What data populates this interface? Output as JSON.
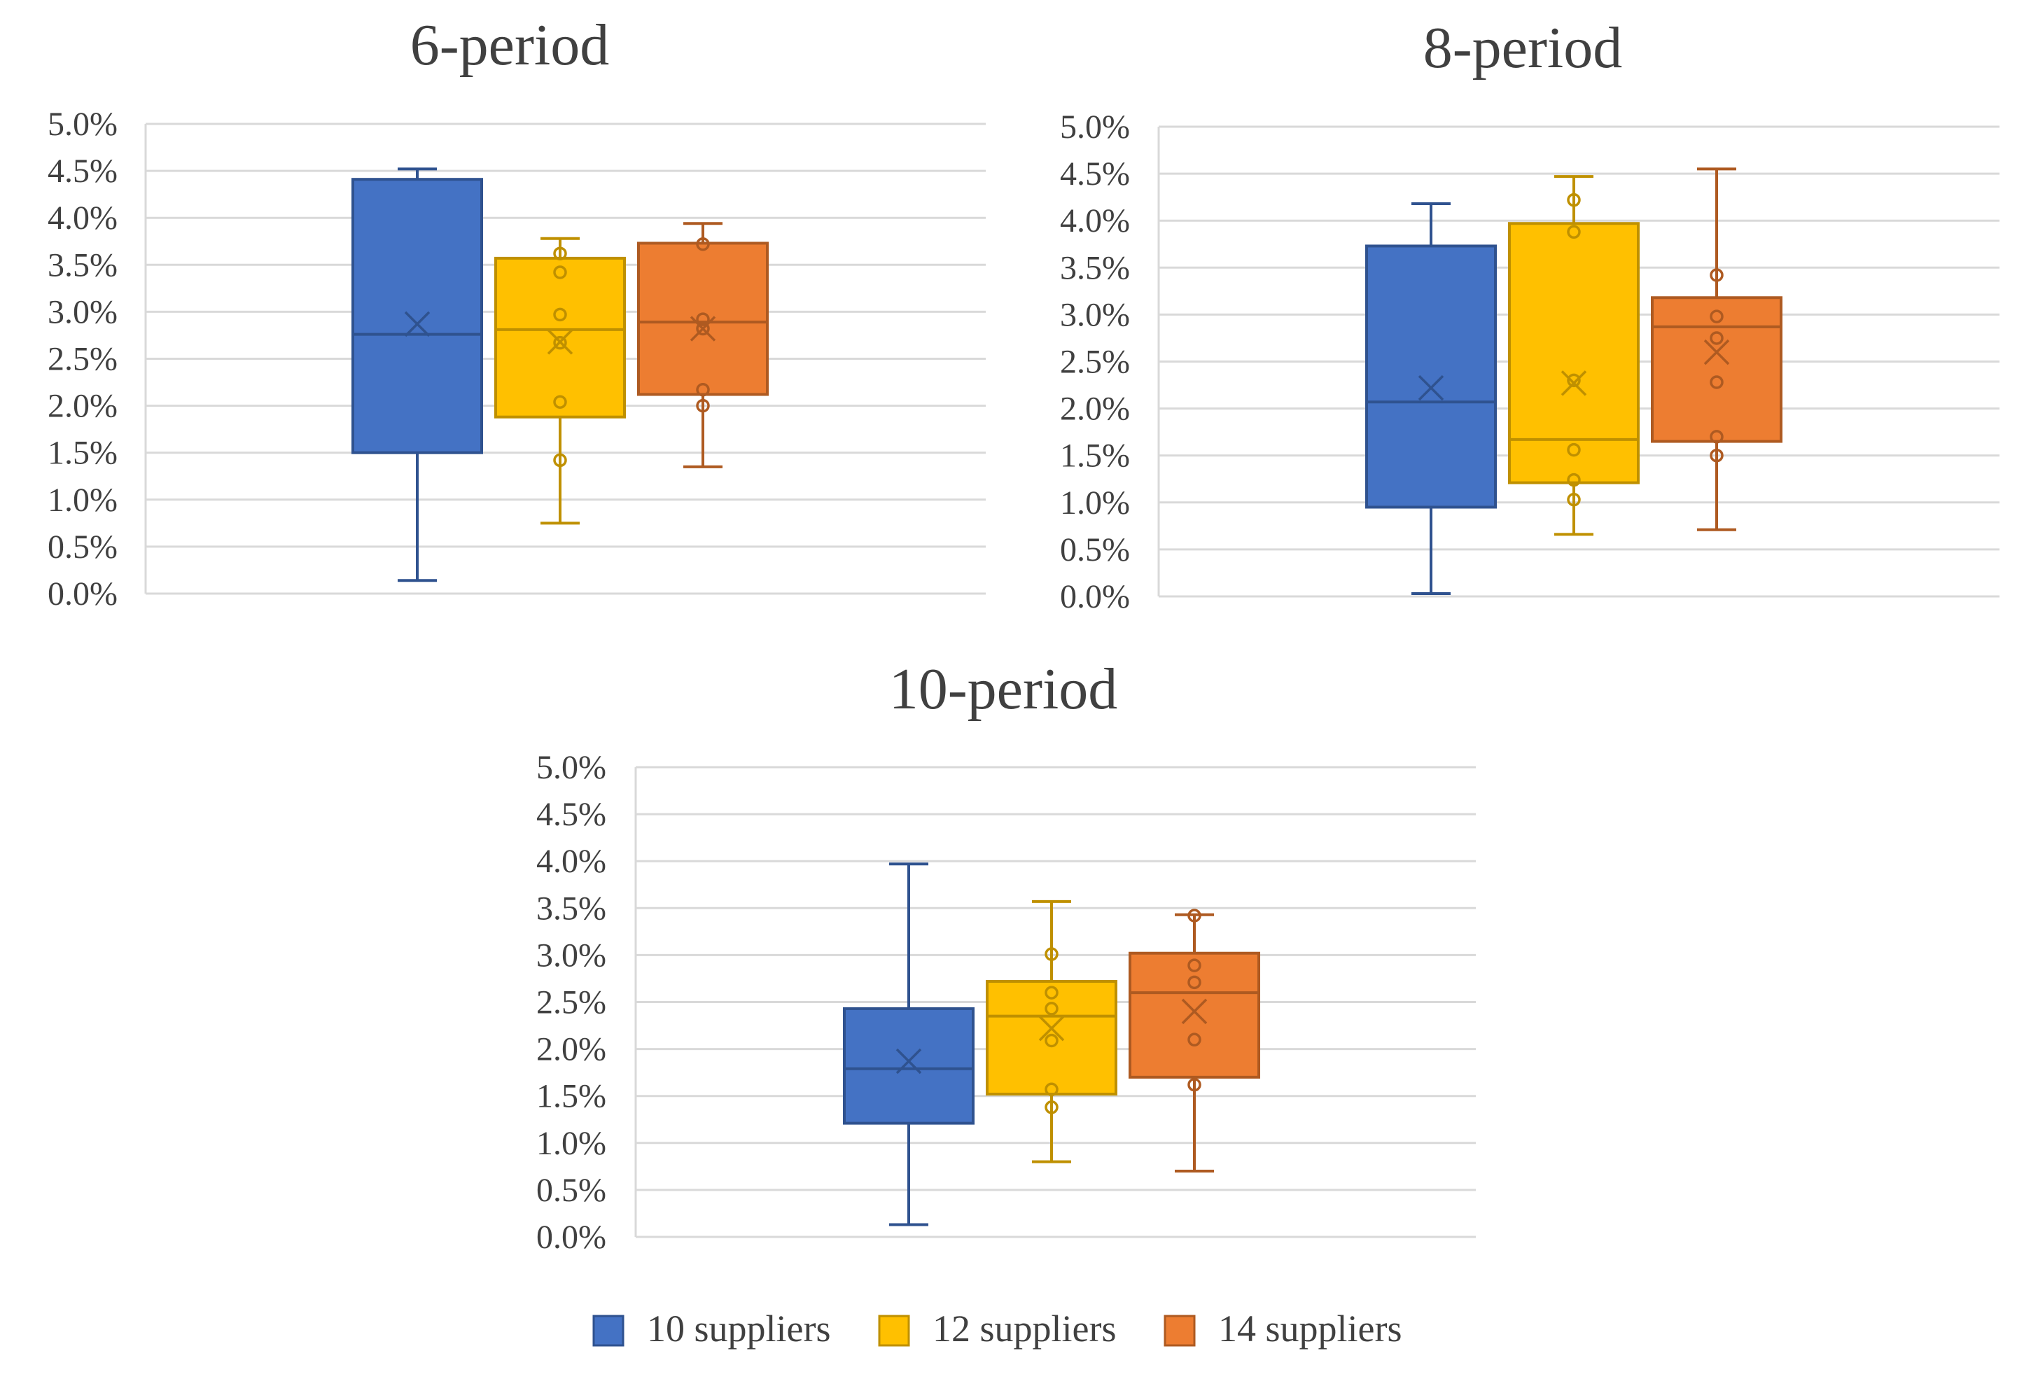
{
  "chart_data": [
    {
      "type": "box",
      "title": "6-period",
      "ylim": [
        0,
        0.05
      ],
      "y_ticks": [
        "0.0%",
        "0.5%",
        "1.0%",
        "1.5%",
        "2.0%",
        "2.5%",
        "3.0%",
        "3.5%",
        "4.0%",
        "4.5%",
        "5.0%"
      ],
      "grid": true,
      "series": [
        {
          "name": "10 suppliers",
          "min": 0.0014,
          "q1": 0.015,
          "median": 0.0276,
          "q3": 0.0441,
          "max": 0.0452,
          "mean": 0.0287,
          "points": []
        },
        {
          "name": "12 suppliers",
          "min": 0.0075,
          "q1": 0.0188,
          "median": 0.0281,
          "q3": 0.0357,
          "max": 0.0378,
          "mean": 0.0268,
          "points": [
            0.0142,
            0.0204,
            0.0267,
            0.0297,
            0.0342,
            0.0362
          ]
        },
        {
          "name": "14 suppliers",
          "min": 0.0135,
          "q1": 0.0212,
          "median": 0.0289,
          "q3": 0.0373,
          "max": 0.0394,
          "mean": 0.0282,
          "points": [
            0.02,
            0.0217,
            0.0282,
            0.0292,
            0.0372
          ]
        }
      ]
    },
    {
      "type": "box",
      "title": "8-period",
      "ylim": [
        0,
        0.05
      ],
      "y_ticks": [
        "0.0%",
        "0.5%",
        "1.0%",
        "1.5%",
        "2.0%",
        "2.5%",
        "3.0%",
        "3.5%",
        "4.0%",
        "4.5%",
        "5.0%"
      ],
      "grid": true,
      "series": [
        {
          "name": "10 suppliers",
          "min": 0.0003,
          "q1": 0.0095,
          "median": 0.0207,
          "q3": 0.0373,
          "max": 0.0418,
          "mean": 0.0222,
          "points": []
        },
        {
          "name": "12 suppliers",
          "min": 0.0066,
          "q1": 0.0121,
          "median": 0.0167,
          "q3": 0.0397,
          "max": 0.0447,
          "mean": 0.0227,
          "points": [
            0.0103,
            0.0124,
            0.0156,
            0.023,
            0.0388,
            0.0422
          ]
        },
        {
          "name": "14 suppliers",
          "min": 0.0071,
          "q1": 0.0165,
          "median": 0.0287,
          "q3": 0.0318,
          "max": 0.0455,
          "mean": 0.026,
          "points": [
            0.015,
            0.017,
            0.0228,
            0.0275,
            0.0298,
            0.0342
          ]
        }
      ]
    },
    {
      "type": "box",
      "title": "10-period",
      "ylim": [
        0,
        0.05
      ],
      "y_ticks": [
        "0.0%",
        "0.5%",
        "1.0%",
        "1.5%",
        "2.0%",
        "2.5%",
        "3.0%",
        "3.5%",
        "4.0%",
        "4.5%",
        "5.0%"
      ],
      "grid": true,
      "series": [
        {
          "name": "10 suppliers",
          "min": 0.0013,
          "q1": 0.0121,
          "median": 0.0179,
          "q3": 0.0243,
          "max": 0.0397,
          "mean": 0.0187,
          "points": []
        },
        {
          "name": "12 suppliers",
          "min": 0.008,
          "q1": 0.0152,
          "median": 0.0235,
          "q3": 0.0272,
          "max": 0.0357,
          "mean": 0.0222,
          "points": [
            0.0138,
            0.0157,
            0.0209,
            0.0243,
            0.026,
            0.0301
          ]
        },
        {
          "name": "14 suppliers",
          "min": 0.007,
          "q1": 0.017,
          "median": 0.026,
          "q3": 0.0302,
          "max": 0.0343,
          "mean": 0.024,
          "points": [
            0.0162,
            0.021,
            0.0271,
            0.0289,
            0.0342
          ]
        }
      ]
    }
  ],
  "legend": {
    "position": "bottom-center",
    "items": [
      {
        "label": "10 suppliers",
        "color": "#4472C4",
        "border": "#2F528F"
      },
      {
        "label": "12 suppliers",
        "color": "#FFC000",
        "border": "#BF9000"
      },
      {
        "label": "14 suppliers",
        "color": "#ED7D31",
        "border": "#AE5A21"
      }
    ]
  }
}
